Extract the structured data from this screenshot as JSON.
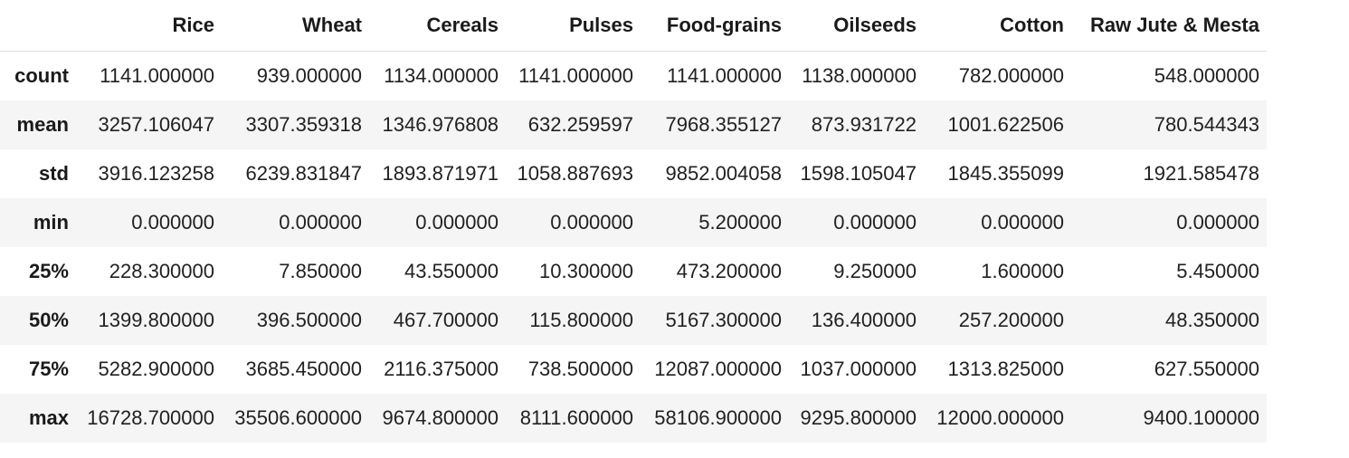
{
  "chart_data": {
    "type": "table",
    "title": "",
    "description": "Summary statistics table (pandas describe-style output) of crop production data",
    "columns": [
      "Rice",
      "Wheat",
      "Cereals",
      "Pulses",
      "Food-grains",
      "Oilseeds",
      "Cotton",
      "Raw Jute & Mesta"
    ],
    "index": [
      "count",
      "mean",
      "std",
      "min",
      "25%",
      "50%",
      "75%",
      "max"
    ],
    "rows": [
      [
        "1141.000000",
        "939.000000",
        "1134.000000",
        "1141.000000",
        "1141.000000",
        "1138.000000",
        "782.000000",
        "548.000000"
      ],
      [
        "3257.106047",
        "3307.359318",
        "1346.976808",
        "632.259597",
        "7968.355127",
        "873.931722",
        "1001.622506",
        "780.544343"
      ],
      [
        "3916.123258",
        "6239.831847",
        "1893.871971",
        "1058.887693",
        "9852.004058",
        "1598.105047",
        "1845.355099",
        "1921.585478"
      ],
      [
        "0.000000",
        "0.000000",
        "0.000000",
        "0.000000",
        "5.200000",
        "0.000000",
        "0.000000",
        "0.000000"
      ],
      [
        "228.300000",
        "7.850000",
        "43.550000",
        "10.300000",
        "473.200000",
        "9.250000",
        "1.600000",
        "5.450000"
      ],
      [
        "1399.800000",
        "396.500000",
        "467.700000",
        "115.800000",
        "5167.300000",
        "136.400000",
        "257.200000",
        "48.350000"
      ],
      [
        "5282.900000",
        "3685.450000",
        "2116.375000",
        "738.500000",
        "12087.000000",
        "1037.000000",
        "1313.825000",
        "627.550000"
      ],
      [
        "16728.700000",
        "35506.600000",
        "9674.800000",
        "8111.600000",
        "58106.900000",
        "9295.800000",
        "12000.000000",
        "9400.100000"
      ]
    ],
    "style": {
      "stripe_color": "#f5f5f5",
      "header_border_color": "#e0e0e0",
      "text_color": "#212121",
      "stripe_rows": [
        "mean",
        "min",
        "50%",
        "max"
      ]
    }
  }
}
